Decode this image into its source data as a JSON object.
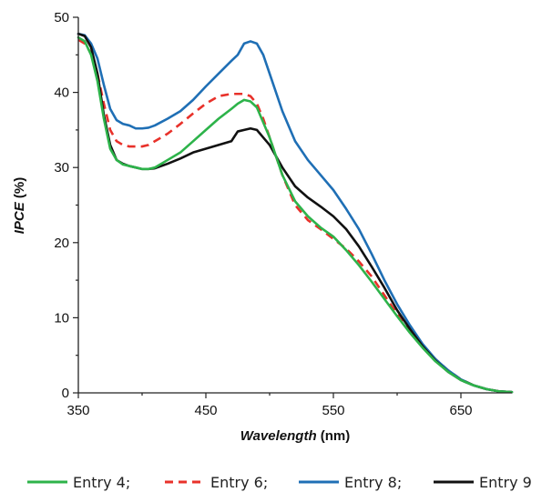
{
  "chart_data": {
    "type": "line",
    "xlabel_italic": "Wavelength",
    "xlabel_unit": " (nm)",
    "ylabel_italic": "IPCE",
    "ylabel_unit": " (%)",
    "xlim": [
      350,
      690
    ],
    "ylim": [
      0,
      50
    ],
    "xticks": [
      350,
      450,
      550,
      650
    ],
    "yticks": [
      0,
      10,
      20,
      30,
      40,
      50
    ],
    "grid": false,
    "legend_position": "bottom",
    "series": [
      {
        "name": "Entry 4;",
        "color": "#2db34a",
        "dash": "solid",
        "x": [
          350,
          355,
          360,
          365,
          370,
          375,
          380,
          385,
          390,
          395,
          400,
          405,
          410,
          420,
          430,
          440,
          450,
          460,
          470,
          475,
          480,
          485,
          490,
          500,
          510,
          520,
          530,
          540,
          550,
          560,
          570,
          580,
          590,
          600,
          610,
          620,
          630,
          640,
          650,
          660,
          670,
          680,
          690
        ],
        "y": [
          47.3,
          46.8,
          45.0,
          41.5,
          36.5,
          32.5,
          31.0,
          30.4,
          30.2,
          30.0,
          29.8,
          29.8,
          30.0,
          31.0,
          32.0,
          33.5,
          35.0,
          36.5,
          37.8,
          38.5,
          39.0,
          38.8,
          38.0,
          34.0,
          29.0,
          25.5,
          23.5,
          22.0,
          20.8,
          19.0,
          17.0,
          14.8,
          12.5,
          10.2,
          8.0,
          6.0,
          4.2,
          2.8,
          1.7,
          1.0,
          0.5,
          0.2,
          0.1
        ]
      },
      {
        "name": "Entry 6;",
        "color": "#e8312a",
        "dash": "dashed",
        "x": [
          350,
          355,
          360,
          365,
          370,
          375,
          380,
          385,
          390,
          395,
          400,
          405,
          410,
          420,
          430,
          440,
          450,
          460,
          470,
          480,
          485,
          490,
          495,
          500,
          510,
          520,
          530,
          540,
          550,
          560,
          570,
          580,
          590,
          600,
          610,
          620,
          630,
          640,
          650,
          660,
          670,
          680,
          690
        ],
        "y": [
          47.0,
          46.5,
          45.2,
          42.5,
          38.5,
          35.0,
          33.5,
          33.0,
          32.8,
          32.8,
          32.8,
          33.0,
          33.5,
          34.5,
          35.8,
          37.2,
          38.5,
          39.5,
          39.8,
          39.8,
          39.5,
          38.5,
          36.5,
          34.0,
          29.0,
          25.0,
          23.0,
          21.8,
          20.5,
          19.2,
          17.5,
          15.5,
          13.0,
          10.5,
          8.2,
          6.2,
          4.5,
          3.0,
          1.8,
          1.0,
          0.5,
          0.2,
          0.1
        ]
      },
      {
        "name": "Entry 8;",
        "color": "#1f6fb5",
        "dash": "solid",
        "x": [
          350,
          355,
          360,
          365,
          370,
          375,
          380,
          385,
          390,
          395,
          400,
          405,
          410,
          420,
          430,
          440,
          450,
          460,
          470,
          475,
          480,
          485,
          490,
          495,
          500,
          510,
          520,
          530,
          540,
          550,
          560,
          570,
          580,
          590,
          600,
          610,
          620,
          630,
          640,
          650,
          660,
          670,
          680,
          690
        ],
        "y": [
          47.8,
          47.6,
          46.5,
          44.5,
          41.0,
          37.8,
          36.3,
          35.8,
          35.6,
          35.2,
          35.2,
          35.3,
          35.6,
          36.5,
          37.5,
          39.0,
          40.8,
          42.5,
          44.2,
          45.0,
          46.5,
          46.8,
          46.5,
          45.0,
          42.5,
          37.5,
          33.5,
          31.0,
          29.0,
          27.0,
          24.5,
          21.8,
          18.5,
          15.0,
          11.8,
          9.0,
          6.5,
          4.5,
          3.0,
          1.8,
          1.0,
          0.5,
          0.2,
          0.1
        ]
      },
      {
        "name": "Entry 9",
        "color": "#111111",
        "dash": "solid",
        "x": [
          350,
          355,
          360,
          365,
          370,
          375,
          380,
          385,
          390,
          395,
          400,
          405,
          410,
          420,
          430,
          440,
          450,
          460,
          470,
          475,
          480,
          485,
          490,
          495,
          500,
          510,
          520,
          530,
          540,
          550,
          560,
          570,
          580,
          590,
          600,
          610,
          620,
          630,
          640,
          650,
          660,
          670,
          680,
          690
        ],
        "y": [
          47.8,
          47.5,
          46.0,
          42.5,
          37.0,
          33.0,
          31.0,
          30.5,
          30.2,
          30.0,
          29.8,
          29.8,
          29.9,
          30.5,
          31.2,
          32.0,
          32.5,
          33.0,
          33.5,
          34.8,
          35.0,
          35.2,
          35.0,
          34.0,
          33.0,
          30.0,
          27.5,
          26.0,
          24.8,
          23.5,
          21.8,
          19.5,
          16.8,
          14.0,
          11.0,
          8.5,
          6.2,
          4.3,
          2.8,
          1.7,
          1.0,
          0.5,
          0.2,
          0.1
        ]
      }
    ]
  }
}
